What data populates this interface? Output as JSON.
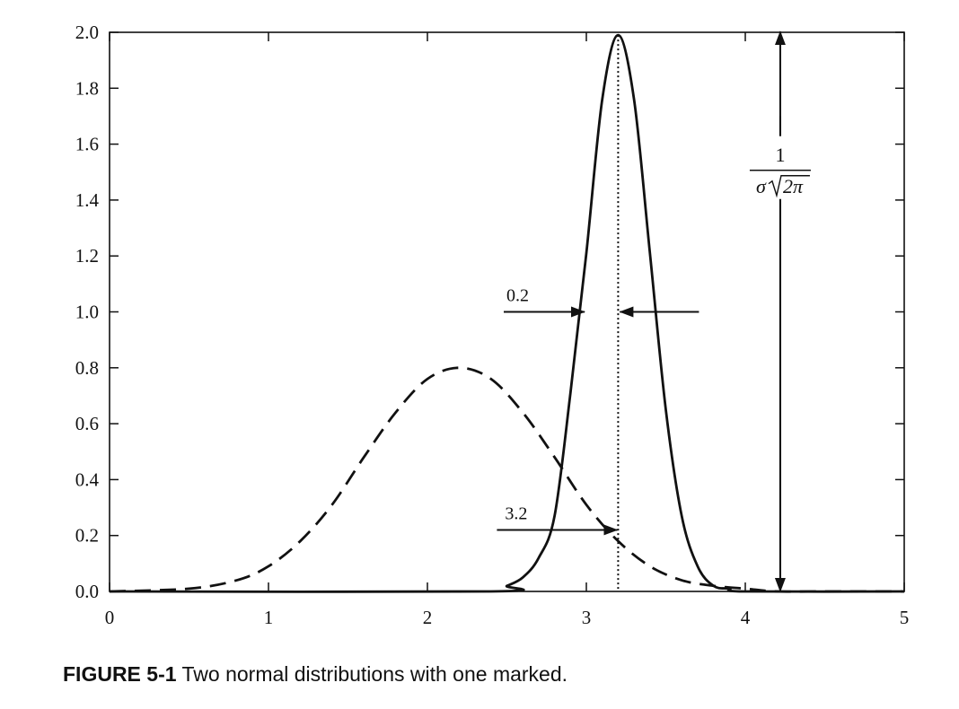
{
  "chart_data": {
    "type": "line",
    "title": "",
    "xlabel": "",
    "ylabel": "",
    "xlim": [
      0,
      5
    ],
    "ylim": [
      0,
      2.0
    ],
    "x_ticks": [
      "0",
      "1",
      "2",
      "3",
      "4",
      "5"
    ],
    "y_ticks": [
      "0.0",
      "0.2",
      "0.4",
      "0.6",
      "0.8",
      "1.0",
      "1.2",
      "1.4",
      "1.6",
      "1.8",
      "2.0"
    ],
    "grid": false,
    "series": [
      {
        "style": "dashed",
        "x": [
          0,
          0.5,
          0.8,
          1.0,
          1.2,
          1.4,
          1.6,
          1.8,
          2.0,
          2.2,
          2.4,
          2.6,
          2.8,
          3.0,
          3.2,
          3.4,
          3.6,
          3.8,
          4.0,
          4.2,
          4.5,
          5.0
        ],
        "values": [
          0.0,
          0.01,
          0.04,
          0.09,
          0.18,
          0.31,
          0.48,
          0.64,
          0.76,
          0.8,
          0.76,
          0.64,
          0.48,
          0.31,
          0.18,
          0.09,
          0.04,
          0.02,
          0.01,
          0.0,
          0.0,
          0.0
        ]
      },
      {
        "style": "solid",
        "x": [
          0,
          2.4,
          2.5,
          2.6,
          2.7,
          2.8,
          2.9,
          3.0,
          3.1,
          3.2,
          3.3,
          3.4,
          3.5,
          3.6,
          3.7,
          3.8,
          3.9,
          4.0,
          5.0
        ],
        "values": [
          0.0,
          0.0,
          0.02,
          0.05,
          0.12,
          0.27,
          0.71,
          1.21,
          1.76,
          1.99,
          1.76,
          1.21,
          0.65,
          0.27,
          0.09,
          0.02,
          0.01,
          0.0,
          0.0
        ]
      }
    ],
    "annotations": {
      "mean_label": "3.2",
      "mean_x": 3.2,
      "mean_arrow_y": 0.22,
      "sigma_label": "0.2",
      "sigma_arrow_y": 1.0,
      "sigma_left_x": 3.0,
      "sigma_right_x": 3.2,
      "peak_arrow_x": 4.22,
      "peak_value": 1.99,
      "formula_numerator": "1",
      "formula_sigma": "σ",
      "formula_radical": "2π"
    }
  },
  "caption": {
    "label": "FIGURE 5-1",
    "text": " Two normal distributions with one marked."
  }
}
